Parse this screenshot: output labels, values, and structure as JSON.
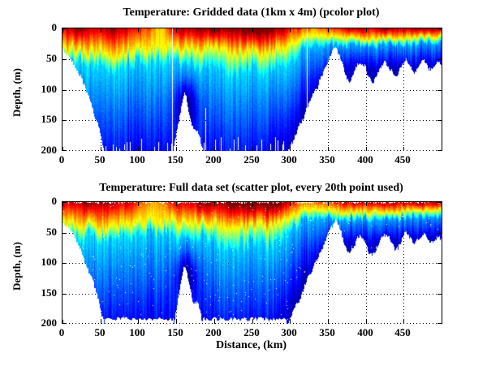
{
  "figure": {
    "background": "#ffffff",
    "axis_color": "#000000",
    "grid_style": "dotted",
    "colormap": "jet",
    "nodata_color": "#ffffff"
  },
  "chart_data": [
    {
      "type": "heatmap",
      "title": "Temperature: Gridded data (1km x 4m) (pcolor plot)",
      "xlabel": "",
      "ylabel": "Depth, (m)",
      "xlim": [
        0,
        500
      ],
      "ylim": [
        200,
        0
      ],
      "xticks": [
        0,
        50,
        100,
        150,
        200,
        250,
        300,
        350,
        400,
        450
      ],
      "xtick_labels": [
        "0",
        "50",
        "100",
        "150",
        "200",
        "250",
        "300",
        "350",
        "400",
        "450"
      ],
      "yticks": [
        0,
        50,
        100,
        150,
        200
      ],
      "ytick_labels": [
        "0",
        "50",
        "100",
        "150",
        "200"
      ],
      "grid": "on",
      "legend": "none",
      "missing_data_columns_km": [
        145,
        322
      ]
    },
    {
      "type": "scatter",
      "title": "Temperature: Full data set (scatter plot, every 20th point used)",
      "xlabel": "Distance, (km)",
      "ylabel": "Depth, (m)",
      "xlim": [
        0,
        500
      ],
      "ylim": [
        200,
        0
      ],
      "xticks": [
        0,
        50,
        100,
        150,
        200,
        250,
        300,
        350,
        400,
        450
      ],
      "xtick_labels": [
        "0",
        "50",
        "100",
        "150",
        "200",
        "250",
        "300",
        "350",
        "400",
        "450"
      ],
      "yticks": [
        0,
        50,
        100,
        150,
        200
      ],
      "ytick_labels": [
        "0",
        "50",
        "100",
        "150",
        "200"
      ],
      "grid": "on",
      "legend": "none",
      "max_data_depth_m": 192
    }
  ],
  "section_model": {
    "comment": "Ocean temperature section; value 1=warmest(dark red) 0=coldest(dark blue), jet colormap; white = below seafloor / no data",
    "bathymetry_km_depth_m": [
      [
        0,
        36
      ],
      [
        8,
        44
      ],
      [
        15,
        58
      ],
      [
        22,
        74
      ],
      [
        28,
        92
      ],
      [
        34,
        112
      ],
      [
        40,
        132
      ],
      [
        45,
        152
      ],
      [
        50,
        176
      ],
      [
        55,
        200
      ],
      [
        146,
        200
      ],
      [
        152,
        160
      ],
      [
        157,
        125
      ],
      [
        160,
        108
      ],
      [
        163,
        112
      ],
      [
        167,
        138
      ],
      [
        171,
        158
      ],
      [
        175,
        168
      ],
      [
        178,
        162
      ],
      [
        181,
        178
      ],
      [
        185,
        200
      ],
      [
        295,
        200
      ],
      [
        305,
        178
      ],
      [
        315,
        150
      ],
      [
        325,
        122
      ],
      [
        335,
        96
      ],
      [
        345,
        66
      ],
      [
        355,
        40
      ],
      [
        360,
        32
      ],
      [
        366,
        48
      ],
      [
        372,
        72
      ],
      [
        378,
        88
      ],
      [
        383,
        76
      ],
      [
        388,
        60
      ],
      [
        393,
        54
      ],
      [
        398,
        62
      ],
      [
        404,
        80
      ],
      [
        409,
        88
      ],
      [
        414,
        76
      ],
      [
        420,
        62
      ],
      [
        426,
        55
      ],
      [
        432,
        65
      ],
      [
        438,
        78
      ],
      [
        443,
        70
      ],
      [
        448,
        58
      ],
      [
        453,
        50
      ],
      [
        458,
        60
      ],
      [
        464,
        72
      ],
      [
        470,
        62
      ],
      [
        475,
        52
      ],
      [
        480,
        58
      ],
      [
        486,
        68
      ],
      [
        491,
        60
      ],
      [
        496,
        55
      ],
      [
        500,
        58
      ]
    ],
    "surface_value_km_v": [
      [
        0,
        0.93
      ],
      [
        30,
        0.96
      ],
      [
        60,
        0.97
      ],
      [
        90,
        0.9
      ],
      [
        110,
        0.78
      ],
      [
        122,
        0.7
      ],
      [
        132,
        0.72
      ],
      [
        140,
        0.8
      ],
      [
        155,
        0.94
      ],
      [
        175,
        0.96
      ],
      [
        200,
        0.99
      ],
      [
        225,
        1.04
      ],
      [
        250,
        1.06
      ],
      [
        270,
        1.05
      ],
      [
        285,
        1.0
      ],
      [
        300,
        0.88
      ],
      [
        315,
        0.78
      ],
      [
        330,
        0.74
      ],
      [
        345,
        0.8
      ],
      [
        360,
        0.86
      ],
      [
        375,
        0.9
      ],
      [
        390,
        0.95
      ],
      [
        405,
        0.92
      ],
      [
        420,
        0.97
      ],
      [
        435,
        0.99
      ],
      [
        450,
        0.9
      ],
      [
        465,
        0.98
      ],
      [
        480,
        0.94
      ],
      [
        500,
        0.96
      ]
    ],
    "warm_layer_depth_km_m": [
      [
        0,
        34
      ],
      [
        40,
        40
      ],
      [
        70,
        40
      ],
      [
        100,
        34
      ],
      [
        125,
        30
      ],
      [
        150,
        32
      ],
      [
        180,
        34
      ],
      [
        210,
        38
      ],
      [
        240,
        40
      ],
      [
        270,
        40
      ],
      [
        290,
        32
      ],
      [
        305,
        22
      ],
      [
        320,
        14
      ],
      [
        340,
        12
      ],
      [
        360,
        14
      ],
      [
        380,
        16
      ],
      [
        400,
        17
      ],
      [
        425,
        16
      ],
      [
        450,
        15
      ],
      [
        475,
        14
      ],
      [
        500,
        13
      ]
    ],
    "cyan_band_extra_m": [
      [
        0,
        20
      ],
      [
        80,
        22
      ],
      [
        150,
        22
      ],
      [
        200,
        30
      ],
      [
        250,
        32
      ],
      [
        290,
        28
      ],
      [
        320,
        18
      ],
      [
        350,
        14
      ],
      [
        380,
        12
      ],
      [
        500,
        11
      ]
    ],
    "deep_falloff_m": [
      [
        0,
        175
      ],
      [
        250,
        175
      ],
      [
        300,
        130
      ],
      [
        330,
        80
      ],
      [
        355,
        45
      ],
      [
        380,
        38
      ],
      [
        500,
        36
      ]
    ],
    "cyan_value_km_v": [
      [
        0,
        0.33
      ],
      [
        290,
        0.33
      ],
      [
        330,
        0.3
      ],
      [
        360,
        0.28
      ],
      [
        500,
        0.27
      ]
    ],
    "cold_anomaly": {
      "center_km": 163,
      "center_depth_m": 122,
      "sigma_km": 14,
      "sigma_m": 40,
      "strength": 0.22
    },
    "missing_columns_km": [
      145,
      322
    ]
  }
}
